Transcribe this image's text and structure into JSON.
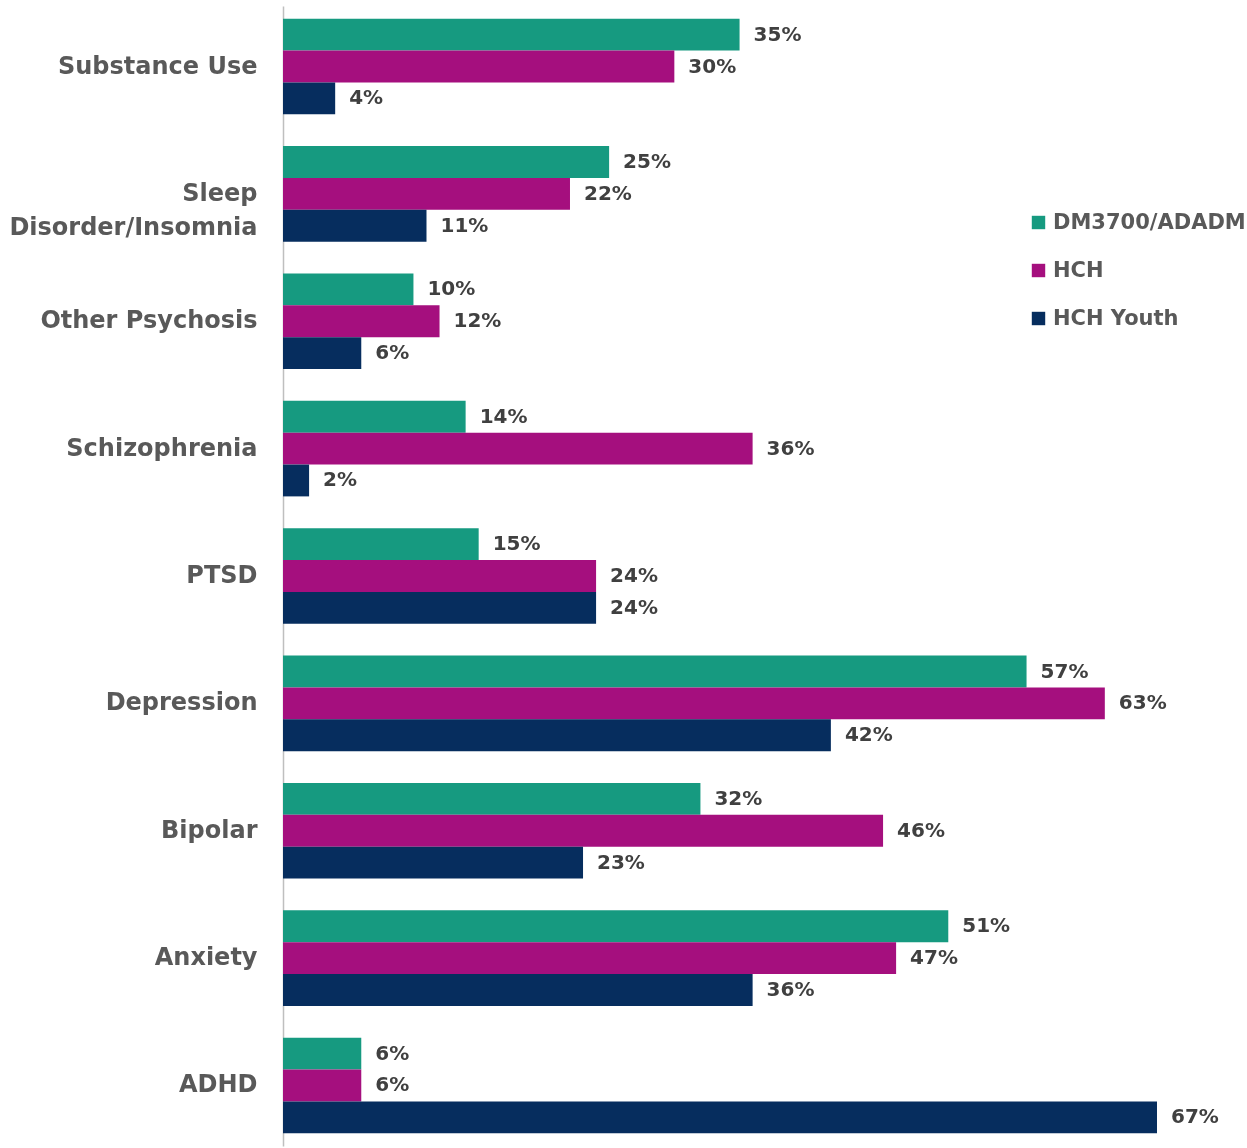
{
  "chart_data": {
    "type": "bar",
    "orientation": "horizontal",
    "categories": [
      "Substance Use",
      "Sleep Disorder/Insomnia",
      "Other Psychosis",
      "Schizophrenia",
      "PTSD",
      "Depression",
      "Bipolar",
      "Anxiety",
      "ADHD"
    ],
    "series": [
      {
        "name": "DM3700/ADADM",
        "color": "#169a80",
        "values": [
          35,
          25,
          10,
          14,
          15,
          57,
          32,
          51,
          6
        ],
        "value_labels": [
          "35%",
          "25%",
          "10%",
          "14%",
          "15%",
          "57%",
          "32%",
          "51%",
          "6%"
        ]
      },
      {
        "name": "HCH",
        "color": "#a50f7e",
        "values": [
          30,
          22,
          12,
          36,
          24,
          63,
          46,
          47,
          6
        ],
        "value_labels": [
          "30%",
          "22%",
          "12%",
          "36%",
          "24%",
          "63%",
          "46%",
          "47%",
          "6%"
        ]
      },
      {
        "name": "HCH Youth",
        "color": "#062d5e",
        "values": [
          4,
          11,
          6,
          2,
          24,
          42,
          23,
          36,
          67
        ],
        "value_labels": [
          "4%",
          "11%",
          "6%",
          "2%",
          "24%",
          "42%",
          "23%",
          "36%",
          "67%"
        ]
      }
    ],
    "legend": "right"
  }
}
